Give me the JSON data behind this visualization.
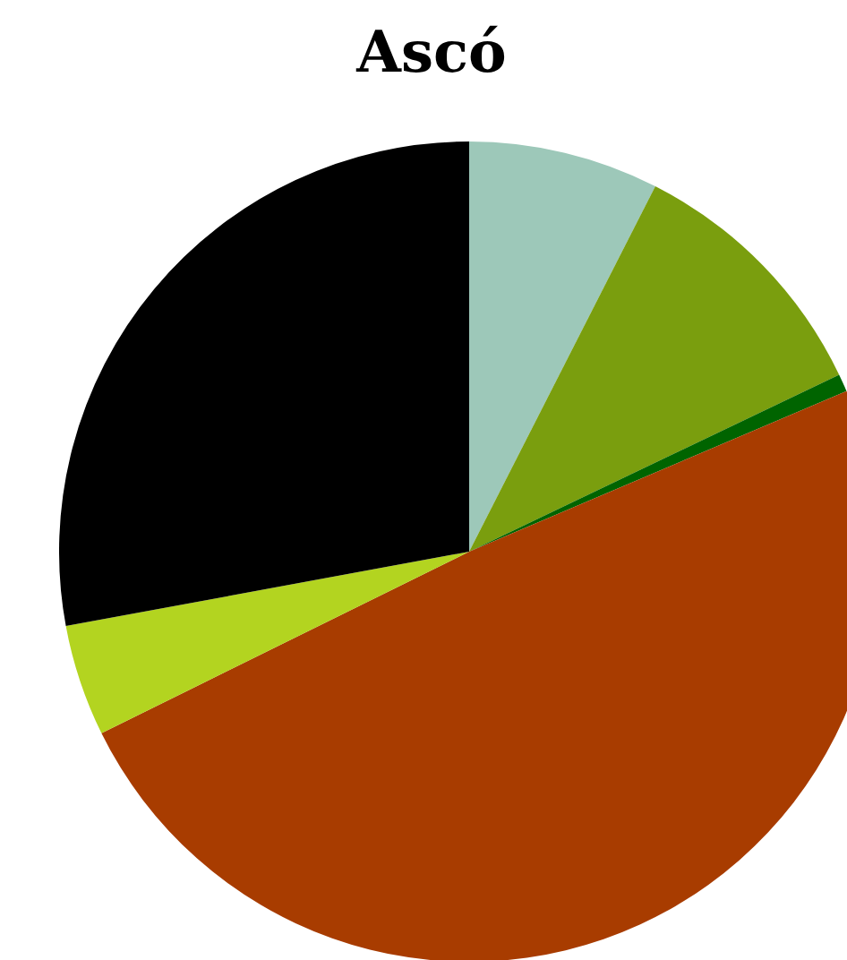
{
  "chart_data": {
    "type": "pie",
    "title": "Ascó",
    "categories": [
      null,
      null,
      null,
      null,
      null,
      null
    ],
    "values": [
      7.5,
      10.4,
      0.7,
      49.1,
      4.4,
      27.9
    ],
    "colors": [
      "#9dc8b9",
      "#7a9e0e",
      "#006400",
      "#a83c00",
      "#b3d420",
      "#000000"
    ]
  }
}
